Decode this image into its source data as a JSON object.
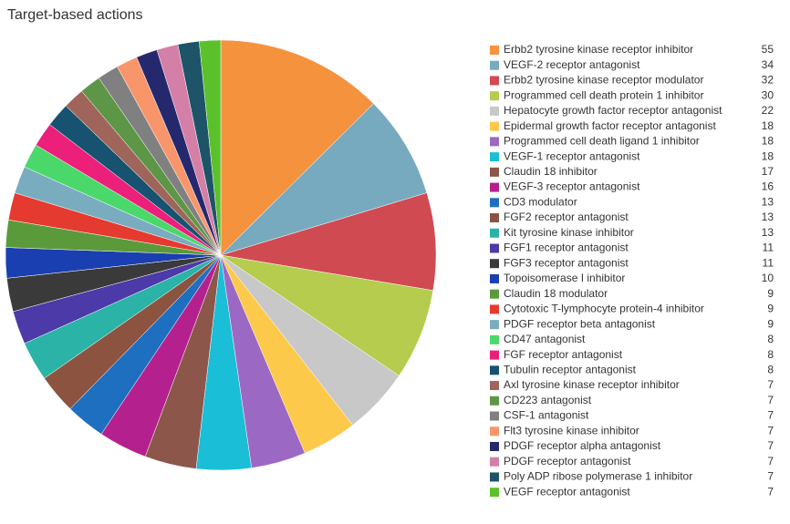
{
  "chart_data": {
    "type": "pie",
    "title": "Target-based actions",
    "categories": [
      "Erbb2 tyrosine kinase receptor inhibitor",
      "VEGF-2 receptor antagonist",
      "Erbb2 tyrosine kinase receptor modulator",
      "Programmed cell death protein 1 inhibitor",
      "Hepatocyte growth factor receptor antagonist",
      "Epidermal growth factor receptor antagonist",
      "Programmed cell death ligand 1 inhibitor",
      "VEGF-1 receptor antagonist",
      "Claudin 18 inhibitor",
      "VEGF-3 receptor antagonist",
      "CD3 modulator",
      "FGF2 receptor antagonist",
      "Kit tyrosine kinase inhibitor",
      "FGF1 receptor antagonist",
      "FGF3 receptor antagonist",
      "Topoisomerase I inhibitor",
      "Claudin 18 modulator",
      "Cytotoxic T-lymphocyte protein-4 inhibitor",
      "PDGF receptor beta antagonist",
      "CD47 antagonist",
      "FGF receptor antagonist",
      "Tubulin receptor antagonist",
      "Axl tyrosine kinase receptor inhibitor",
      "CD223 antagonist",
      "CSF-1 antagonist",
      "Flt3 tyrosine kinase inhibitor",
      "PDGF receptor alpha antagonist",
      "PDGF receptor antagonist",
      "Poly ADP ribose polymerase 1 inhibitor",
      "VEGF receptor antagonist"
    ],
    "values": [
      55,
      34,
      32,
      30,
      22,
      18,
      18,
      18,
      17,
      16,
      13,
      13,
      13,
      11,
      11,
      10,
      9,
      9,
      9,
      8,
      8,
      8,
      7,
      7,
      7,
      7,
      7,
      7,
      7,
      7
    ],
    "colors": [
      "#f5923e",
      "#77aabf",
      "#d04a52",
      "#b5cc4e",
      "#c8c8c8",
      "#fdc94a",
      "#9b69c4",
      "#1abed6",
      "#8c564b",
      "#b5208f",
      "#1f6fc0",
      "#8c5440",
      "#2ab3a6",
      "#4b3aa8",
      "#3a3a3a",
      "#1a3fb0",
      "#5a9a3a",
      "#e53a2f",
      "#7aacbf",
      "#4ad86a",
      "#ec1f7a",
      "#175270",
      "#a0655a",
      "#5e9648",
      "#808080",
      "#f8956a",
      "#26286e",
      "#d47fa8",
      "#1d5468",
      "#5bc12a"
    ],
    "legend": "right"
  }
}
